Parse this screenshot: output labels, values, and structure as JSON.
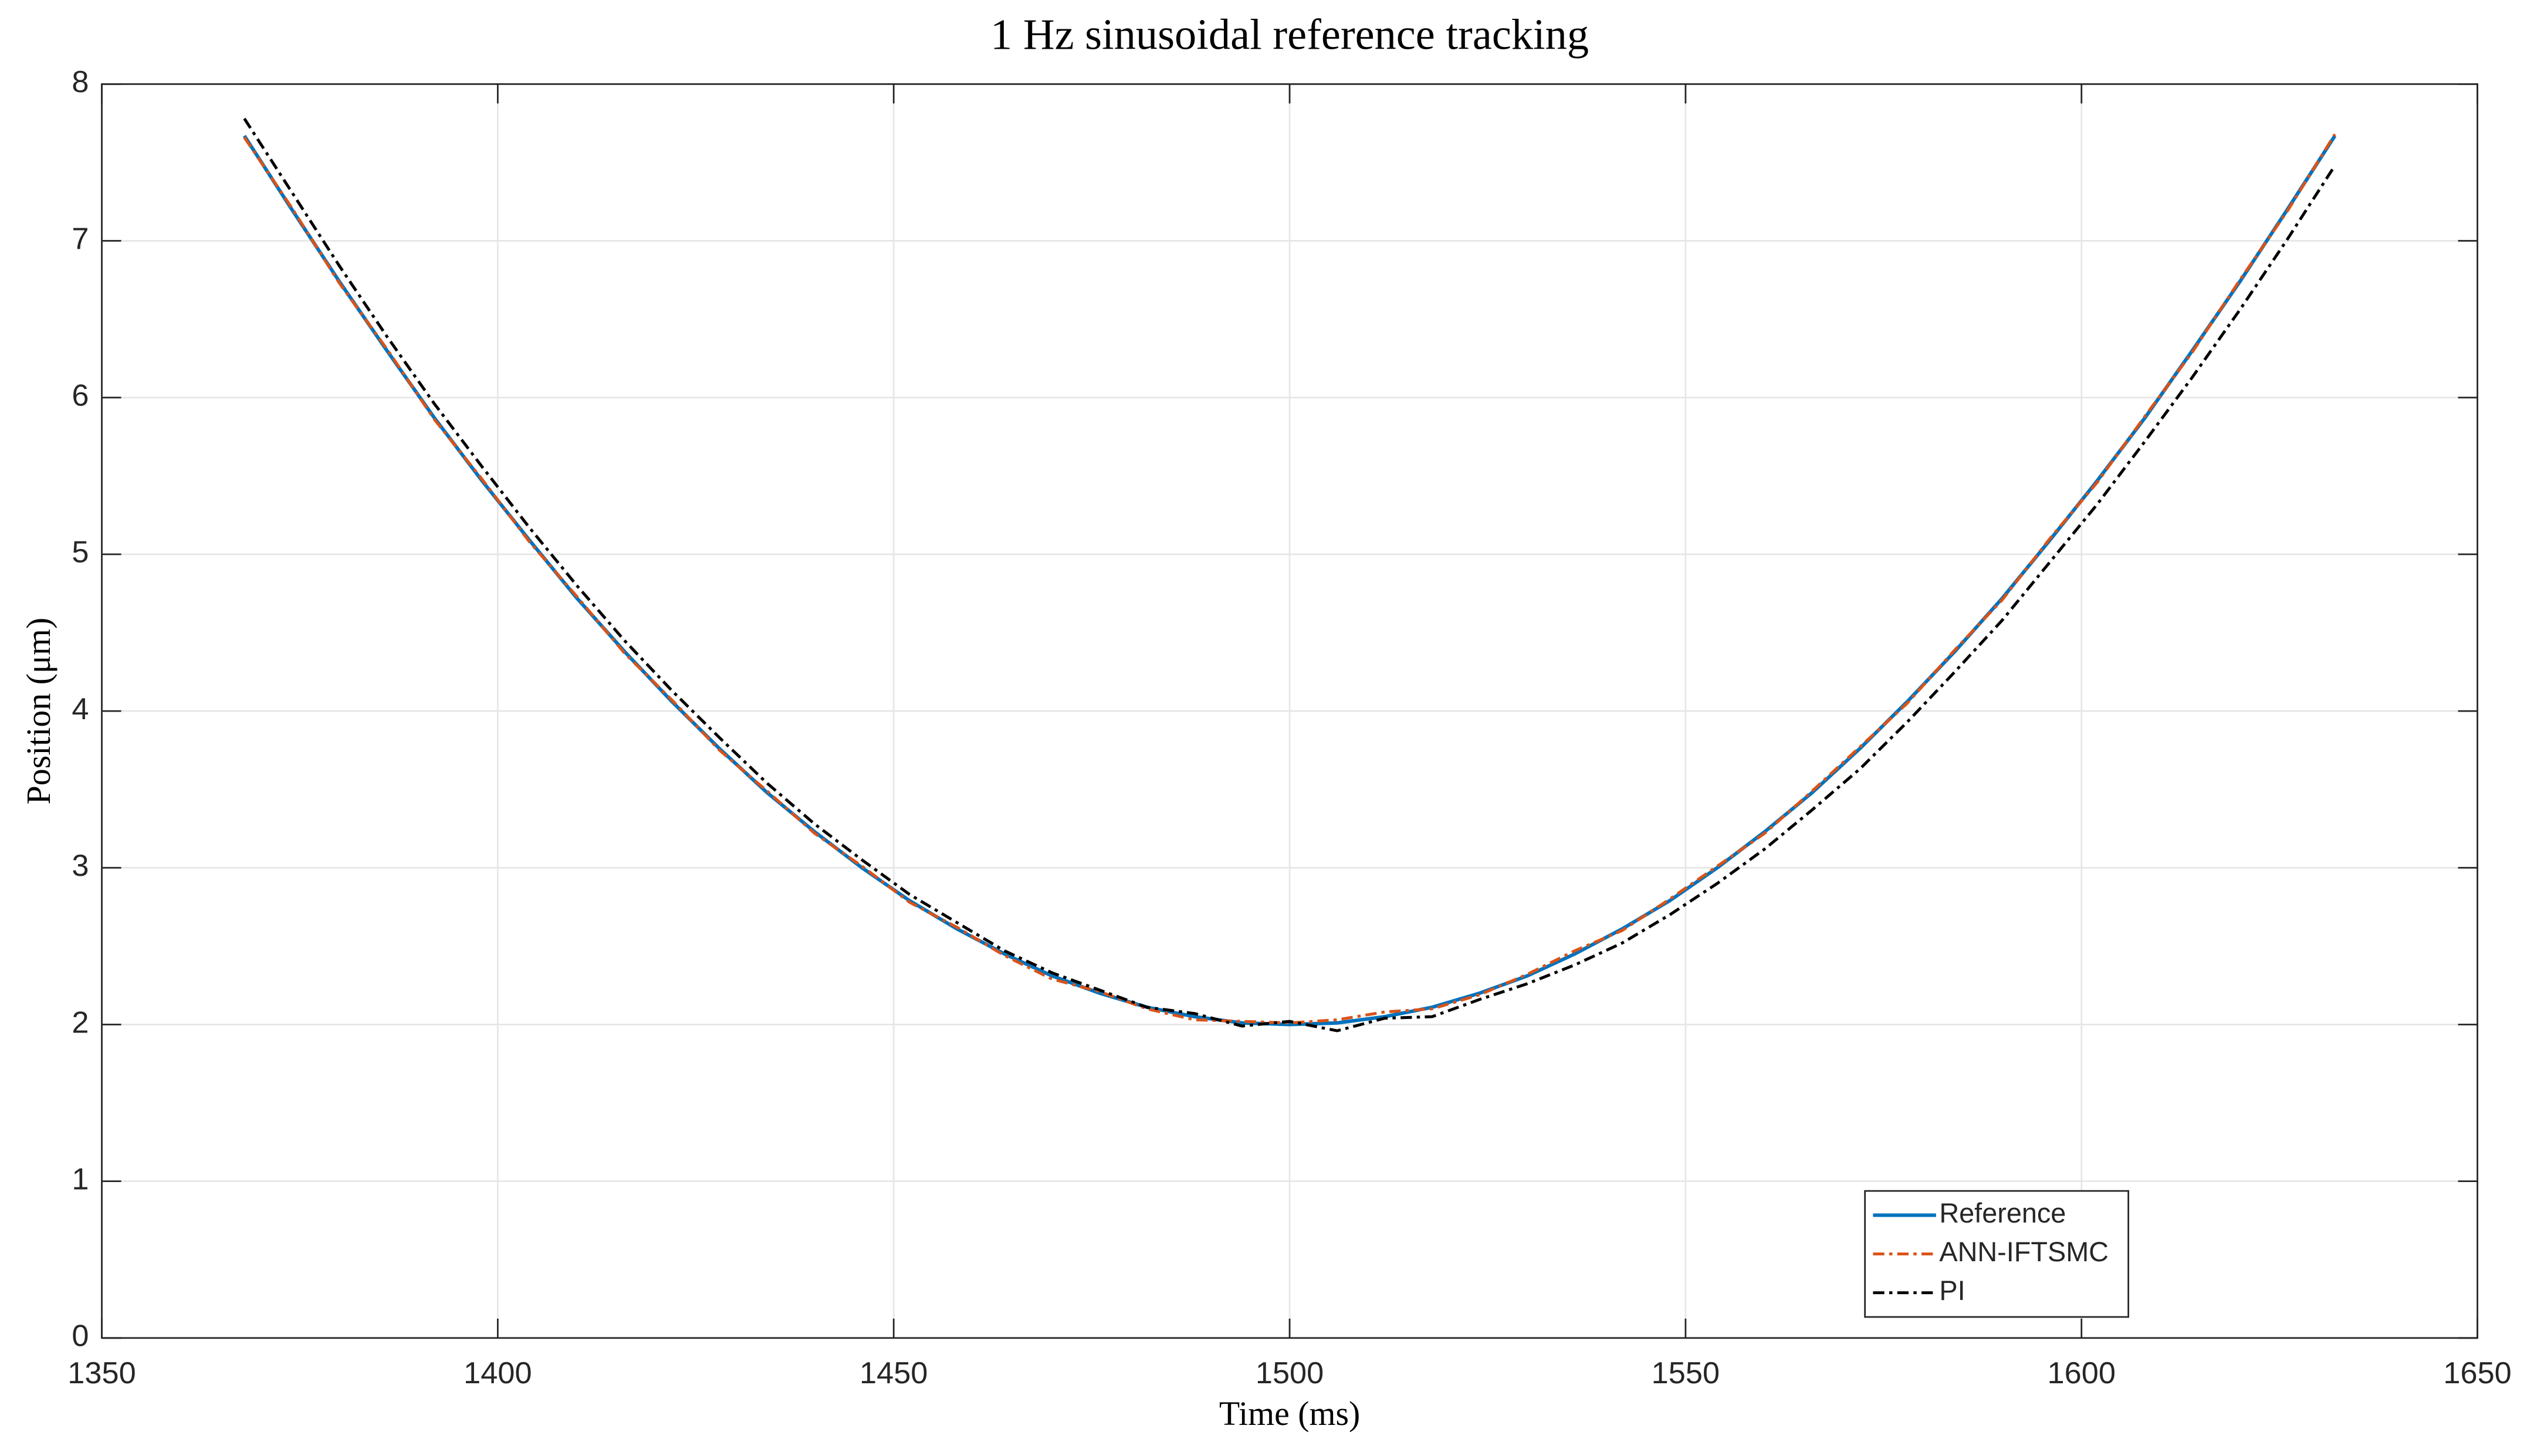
{
  "chart_data": {
    "type": "line",
    "title": "1 Hz sinusoidal reference tracking",
    "xlabel": "Time (ms)",
    "ylabel": "Position (μm)",
    "x": [
      1368,
      1374,
      1380,
      1386,
      1392,
      1398,
      1404,
      1410,
      1416,
      1422,
      1428,
      1434,
      1440,
      1446,
      1452,
      1458,
      1464,
      1470,
      1476,
      1482,
      1488,
      1494,
      1500,
      1506,
      1512,
      1518,
      1524,
      1530,
      1536,
      1542,
      1548,
      1554,
      1560,
      1566,
      1572,
      1578,
      1584,
      1590,
      1596,
      1602,
      1608,
      1614,
      1620,
      1626,
      1632
    ],
    "series": [
      {
        "name": "Reference",
        "color": "#0072bd",
        "dash": "solid",
        "values": [
          7.67,
          7.2,
          6.74,
          6.3,
          5.87,
          5.47,
          5.09,
          4.72,
          4.38,
          4.06,
          3.76,
          3.48,
          3.23,
          3.0,
          2.79,
          2.61,
          2.45,
          2.31,
          2.2,
          2.11,
          2.05,
          2.01,
          2.0,
          2.01,
          2.05,
          2.11,
          2.2,
          2.31,
          2.45,
          2.61,
          2.79,
          3.0,
          3.23,
          3.48,
          3.76,
          4.06,
          4.38,
          4.72,
          5.09,
          5.47,
          5.87,
          6.3,
          6.74,
          7.2,
          7.67
        ]
      },
      {
        "name": "ANN-IFTSMC",
        "color": "#d95319",
        "dash": "dashdot",
        "values": [
          7.66,
          7.21,
          6.73,
          6.31,
          5.86,
          5.48,
          5.08,
          4.73,
          4.37,
          4.07,
          3.75,
          3.49,
          3.22,
          3.01,
          2.78,
          2.62,
          2.44,
          2.29,
          2.21,
          2.1,
          2.03,
          2.02,
          2.01,
          2.03,
          2.08,
          2.1,
          2.19,
          2.32,
          2.47,
          2.6,
          2.8,
          3.01,
          3.22,
          3.49,
          3.77,
          4.05,
          4.39,
          4.71,
          5.1,
          5.46,
          5.88,
          6.29,
          6.75,
          7.19,
          7.68
        ]
      },
      {
        "name": "PI",
        "color": "#000000",
        "dash": "dashdot",
        "values": [
          7.78,
          7.31,
          6.84,
          6.39,
          5.96,
          5.56,
          5.17,
          4.8,
          4.45,
          4.13,
          3.83,
          3.54,
          3.28,
          3.05,
          2.83,
          2.65,
          2.47,
          2.33,
          2.22,
          2.11,
          2.07,
          1.99,
          2.02,
          1.96,
          2.04,
          2.05,
          2.16,
          2.26,
          2.38,
          2.52,
          2.7,
          2.9,
          3.12,
          3.37,
          3.63,
          3.93,
          4.25,
          4.58,
          4.95,
          5.32,
          5.72,
          6.13,
          6.56,
          7.01,
          7.48
        ]
      }
    ],
    "xlim": [
      1350,
      1650
    ],
    "xticks": [
      1350,
      1400,
      1450,
      1500,
      1550,
      1600,
      1650
    ],
    "ylim": [
      0,
      8
    ],
    "yticks": [
      0,
      1,
      2,
      3,
      4,
      5,
      6,
      7,
      8
    ],
    "grid": true,
    "legend": "lower right"
  }
}
